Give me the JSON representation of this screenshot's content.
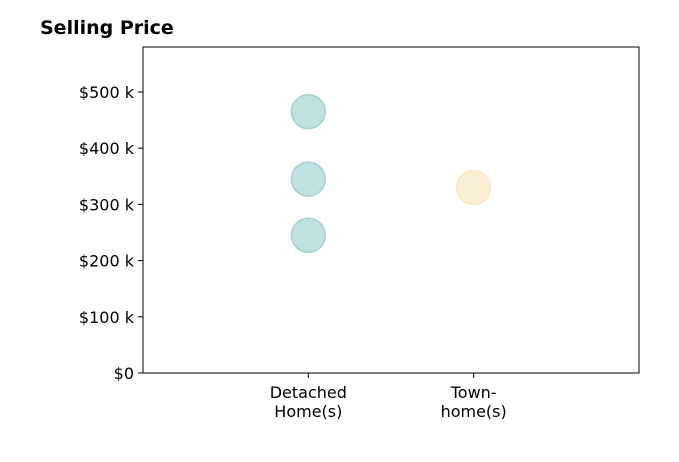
{
  "chart_data": {
    "type": "scatter",
    "title": "Selling Price",
    "xlabel": "",
    "ylabel": "",
    "categories": [
      {
        "lines": [
          "Detached",
          "Home(s)"
        ],
        "color": "#8cc9c4"
      },
      {
        "lines": [
          "Town-",
          "home(s)"
        ],
        "color": "#f5e1b3"
      }
    ],
    "yticks": [
      {
        "value": 0,
        "label": "$0"
      },
      {
        "value": 100000,
        "label": "$100 k"
      },
      {
        "value": 200000,
        "label": "$200 k"
      },
      {
        "value": 300000,
        "label": "$300 k"
      },
      {
        "value": 400000,
        "label": "$400 k"
      },
      {
        "value": 500000,
        "label": "$500 k"
      }
    ],
    "ylim": [
      0,
      580000
    ],
    "xlim": [
      -1,
      2
    ],
    "points": [
      {
        "category": 0,
        "y": 465000
      },
      {
        "category": 0,
        "y": 345000
      },
      {
        "category": 0,
        "y": 245000
      },
      {
        "category": 1,
        "y": 330000
      }
    ],
    "grid": false,
    "legend": "none"
  }
}
